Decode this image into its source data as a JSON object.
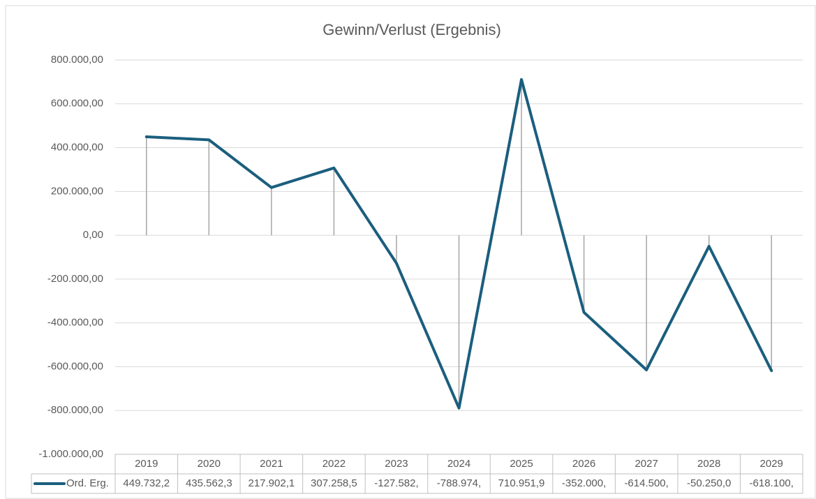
{
  "chart_data": {
    "type": "line",
    "title": "Gewinn/Verlust (Ergebnis)",
    "categories": [
      "2019",
      "2020",
      "2021",
      "2022",
      "2023",
      "2024",
      "2025",
      "2026",
      "2027",
      "2028",
      "2029"
    ],
    "series": [
      {
        "name": "Ord. Erg.",
        "color": "#1b5e7e",
        "values": [
          449732.2,
          435562.3,
          217902.1,
          307258.5,
          -127582,
          -788974,
          710951.9,
          -352000,
          -614500,
          -50250,
          -618100
        ],
        "value_labels": [
          "449.732,2",
          "435.562,3",
          "217.902,1",
          "307.258,5",
          "-127.582,",
          "-788.974,",
          "710.951,9",
          "-352.000,",
          "-614.500,",
          "-50.250,0",
          "-618.100,"
        ]
      }
    ],
    "ylim": [
      -1000000,
      800000
    ],
    "yticks": [
      {
        "value": -1000000,
        "label": "-1.000.000,00"
      },
      {
        "value": -800000,
        "label": "-800.000,00"
      },
      {
        "value": -600000,
        "label": "-600.000,00"
      },
      {
        "value": -400000,
        "label": "-400.000,00"
      },
      {
        "value": -200000,
        "label": "-200.000,00"
      },
      {
        "value": 0,
        "label": "0,00"
      },
      {
        "value": 200000,
        "label": "200.000,00"
      },
      {
        "value": 400000,
        "label": "400.000,00"
      },
      {
        "value": 600000,
        "label": "600.000,00"
      },
      {
        "value": 800000,
        "label": "800.000,00"
      }
    ],
    "grid": true,
    "drop_lines": true,
    "data_table": true
  }
}
